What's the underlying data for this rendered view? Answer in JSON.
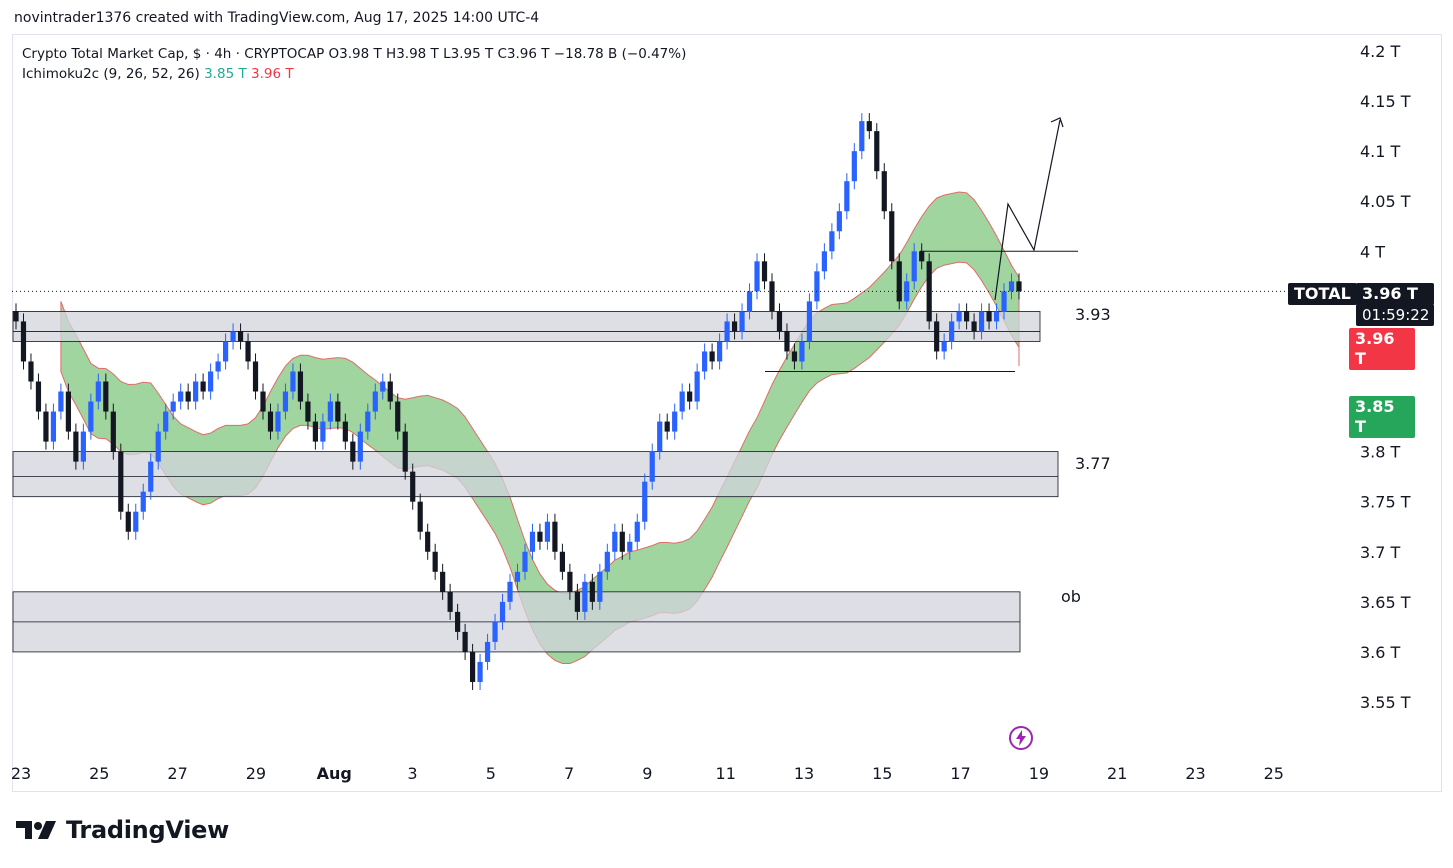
{
  "caption": "novintrader1376 created with TradingView.com, Aug 17, 2025 14:00 UTC-4",
  "legend": {
    "symbol_line": "Crypto Total Market Cap, $ · 4h · CRYPTOCAP",
    "ohlc": "O3.98 T  H3.98 T  L3.95 T  C3.96 T  −18.78 B (−0.47%)",
    "indicator_name": "Ichimoku2c (9, 26, 52, 26)",
    "indicator_val1": "3.85 T",
    "indicator_val2": "3.96 T"
  },
  "tags": {
    "symbol": "TOTAL",
    "price": "3.96 T",
    "countdown": "01:59:22",
    "cloud_red": "3.96 T",
    "cloud_green": "3.85 T"
  },
  "zone_labels": {
    "z393": "3.93",
    "z377": "3.77",
    "ob": "ob"
  },
  "brand": "TradingView",
  "colors": {
    "up": "#2962ff",
    "down": "#131722",
    "cloud": "#6dbf6d",
    "cloud_edge": "#e06b6b",
    "zone": "#d1d4dc"
  },
  "chart_data": {
    "type": "candlestick",
    "ylim": [
      3.52,
      4.22
    ],
    "y_ticks": [
      {
        "v": 4.2,
        "label": "4.2 T"
      },
      {
        "v": 4.15,
        "label": "4.15 T"
      },
      {
        "v": 4.1,
        "label": "4.1 T"
      },
      {
        "v": 4.05,
        "label": "4.05 T"
      },
      {
        "v": 4.0,
        "label": "4 T"
      },
      {
        "v": 3.95,
        "label": "3.95 T"
      },
      {
        "v": 3.9,
        "label": "3.9 T"
      },
      {
        "v": 3.85,
        "label": "3.85 T"
      },
      {
        "v": 3.8,
        "label": "3.8 T"
      },
      {
        "v": 3.75,
        "label": "3.75 T"
      },
      {
        "v": 3.7,
        "label": "3.7 T"
      },
      {
        "v": 3.65,
        "label": "3.65 T"
      },
      {
        "v": 3.6,
        "label": "3.6 T"
      },
      {
        "v": 3.55,
        "label": "3.55 T"
      }
    ],
    "x_labels": [
      "23",
      "25",
      "27",
      "29",
      "Aug",
      "3",
      "5",
      "7",
      "9",
      "11",
      "13",
      "15",
      "17",
      "19",
      "21",
      "23",
      "25"
    ],
    "closes": [
      3.93,
      3.89,
      3.87,
      3.84,
      3.81,
      3.84,
      3.86,
      3.82,
      3.79,
      3.82,
      3.85,
      3.87,
      3.84,
      3.8,
      3.74,
      3.72,
      3.74,
      3.76,
      3.79,
      3.82,
      3.84,
      3.85,
      3.86,
      3.85,
      3.87,
      3.86,
      3.88,
      3.89,
      3.91,
      3.92,
      3.91,
      3.89,
      3.86,
      3.84,
      3.82,
      3.84,
      3.86,
      3.88,
      3.85,
      3.83,
      3.81,
      3.83,
      3.85,
      3.83,
      3.81,
      3.79,
      3.82,
      3.84,
      3.86,
      3.87,
      3.85,
      3.82,
      3.78,
      3.75,
      3.72,
      3.7,
      3.68,
      3.66,
      3.64,
      3.62,
      3.6,
      3.57,
      3.59,
      3.61,
      3.63,
      3.65,
      3.67,
      3.68,
      3.7,
      3.72,
      3.71,
      3.73,
      3.7,
      3.68,
      3.66,
      3.64,
      3.67,
      3.65,
      3.68,
      3.7,
      3.72,
      3.7,
      3.71,
      3.73,
      3.77,
      3.8,
      3.83,
      3.82,
      3.84,
      3.86,
      3.85,
      3.88,
      3.9,
      3.89,
      3.91,
      3.93,
      3.92,
      3.94,
      3.96,
      3.99,
      3.97,
      3.94,
      3.92,
      3.9,
      3.89,
      3.91,
      3.95,
      3.98,
      4.0,
      4.02,
      4.04,
      4.07,
      4.1,
      4.13,
      4.12,
      4.08,
      4.04,
      3.99,
      3.95,
      3.97,
      4.0,
      3.99,
      3.93,
      3.9,
      3.91,
      3.93,
      3.94,
      3.93,
      3.92,
      3.94,
      3.93,
      3.94,
      3.96,
      3.97,
      3.96
    ],
    "zones": [
      {
        "name": "3.93",
        "top": 3.94,
        "mid": 3.92,
        "bottom": 3.91
      },
      {
        "name": "3.77",
        "top": 3.8,
        "mid": 3.775,
        "bottom": 3.755
      },
      {
        "name": "ob",
        "top": 3.66,
        "mid": 3.63,
        "bottom": 3.6
      }
    ]
  }
}
